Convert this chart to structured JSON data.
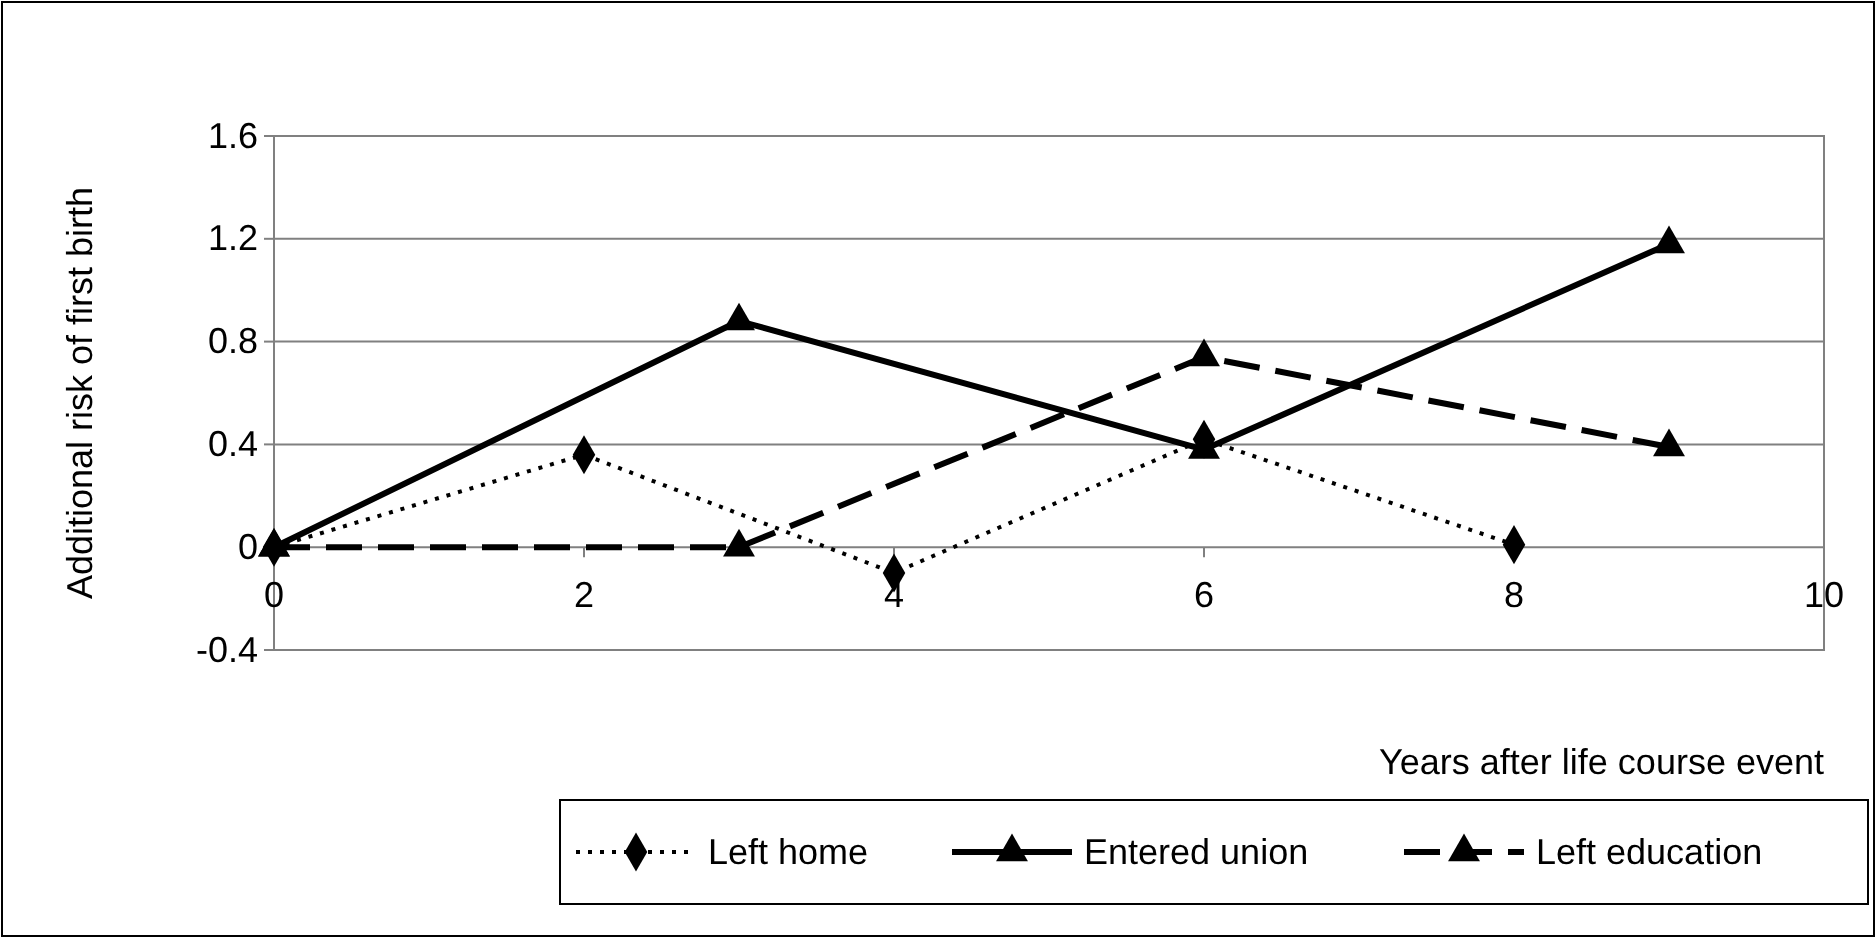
{
  "chart_data": {
    "type": "line",
    "xlabel": "Years after life course event",
    "ylabel": "Additional risk of first birth",
    "xlim": [
      0,
      10
    ],
    "xticks": [
      0,
      2,
      4,
      6,
      8,
      10
    ],
    "ylim": [
      -0.4,
      1.6
    ],
    "yticks": [
      -0.4,
      0,
      0.4,
      0.8,
      1.2,
      1.6
    ],
    "grid": "y",
    "legend": "bottom right",
    "series": [
      {
        "name": "Left home",
        "color": "#000000",
        "x": [
          0,
          2,
          4,
          6,
          8
        ],
        "values": [
          0,
          0.36,
          -0.1,
          0.42,
          0.01
        ],
        "marker": "diamond",
        "line_style": "dotted"
      },
      {
        "name": "Entered union",
        "color": "#000000",
        "x": [
          0,
          3,
          6,
          9
        ],
        "values": [
          0,
          0.88,
          0.38,
          1.18
        ],
        "marker": "triangle",
        "line_style": "solid"
      },
      {
        "name": "Left education",
        "color": "#000000",
        "x": [
          0,
          3,
          6,
          9
        ],
        "values": [
          0,
          0,
          0.74,
          0.39
        ],
        "marker": "triangle",
        "line_style": "dashed"
      }
    ]
  }
}
